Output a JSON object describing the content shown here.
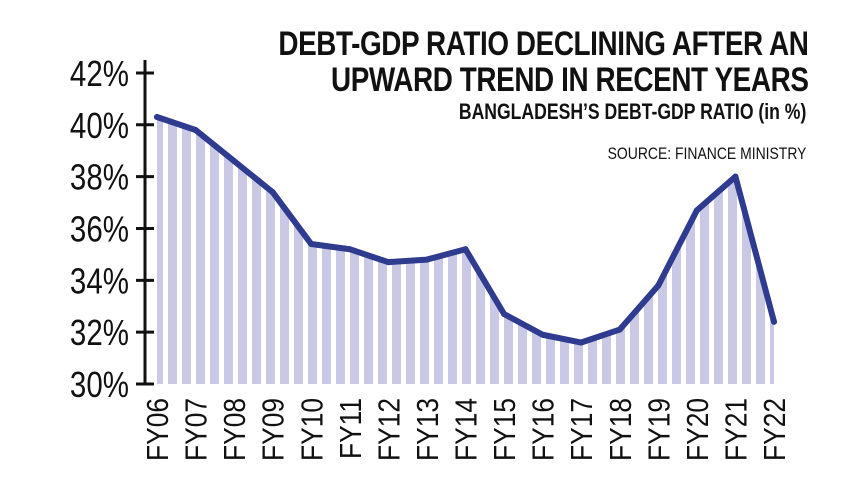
{
  "chart_data": {
    "type": "area",
    "title_lines": [
      "DEBT-GDP RATIO DECLINING AFTER AN",
      "UPWARD TREND IN RECENT YEARS"
    ],
    "subtitle": "BANGLADESH’S DEBT-GDP RATIO (in %)",
    "source": "SOURCE: FINANCE MINISTRY",
    "categories": [
      "FY06",
      "FY07",
      "FY08",
      "FY09",
      "FY10",
      "FY11",
      "FY12",
      "FY13",
      "FY14",
      "FY15",
      "FY16",
      "FY17",
      "FY18",
      "FY19",
      "FY20",
      "FY21",
      "FY22"
    ],
    "values": [
      40.3,
      39.8,
      38.6,
      37.4,
      35.4,
      35.2,
      34.7,
      34.8,
      35.2,
      32.7,
      31.9,
      31.6,
      32.1,
      33.8,
      36.7,
      38.0,
      32.4
    ],
    "yticks": [
      30,
      32,
      34,
      36,
      38,
      40,
      42
    ],
    "ytick_labels": [
      "30%",
      "32%",
      "34%",
      "36%",
      "38%",
      "40%",
      "42%"
    ],
    "ylim": [
      30,
      42.5
    ],
    "colors": {
      "line": "#2e3b8f",
      "stripe": "#c9c9e6",
      "text": "#111111",
      "axis": "#111111"
    }
  }
}
